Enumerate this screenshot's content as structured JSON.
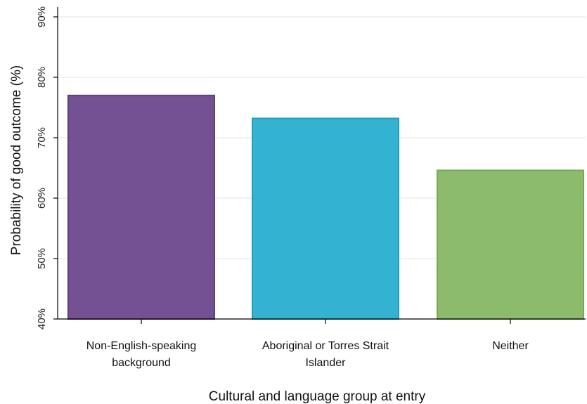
{
  "chart_data": {
    "type": "bar",
    "categories": [
      "Non-English-speaking background",
      "Aboriginal or Torres Strait Islander",
      "Neither"
    ],
    "category_label_lines": [
      [
        "Non-English-speaking",
        "background"
      ],
      [
        "Aboriginal or Torres Strait",
        "Islander"
      ],
      [
        "Neither"
      ]
    ],
    "values": [
      77.0,
      73.2,
      64.6
    ],
    "colors": [
      "#735192",
      "#33b3d1",
      "#8dbb6c"
    ],
    "border_colors": [
      "#5e3f7c",
      "#219dbd",
      "#76a85a"
    ],
    "ylim": [
      40,
      90
    ],
    "yticks": [
      40,
      50,
      60,
      70,
      80,
      90
    ],
    "ytick_labels": [
      "40%",
      "50%",
      "60%",
      "70%",
      "80%",
      "90%"
    ],
    "xlabel": "Cultural and language group at entry",
    "ylabel": "Probability of good outcome (%)",
    "grid": true,
    "gridline_color": "#e8eef2",
    "legend": "none"
  }
}
